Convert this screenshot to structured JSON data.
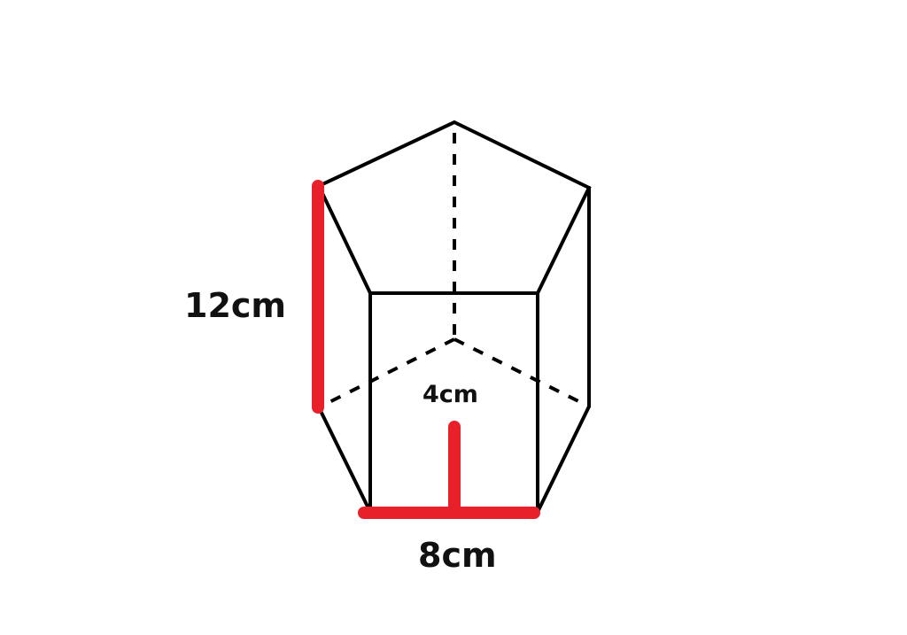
{
  "figure": {
    "type": "pentagonal prism",
    "labels": {
      "height": "12cm",
      "apothem": "4cm",
      "side": "8cm"
    },
    "colors": {
      "edge": "#000000",
      "highlight": "#e8202a",
      "background": "#ffffff"
    }
  }
}
